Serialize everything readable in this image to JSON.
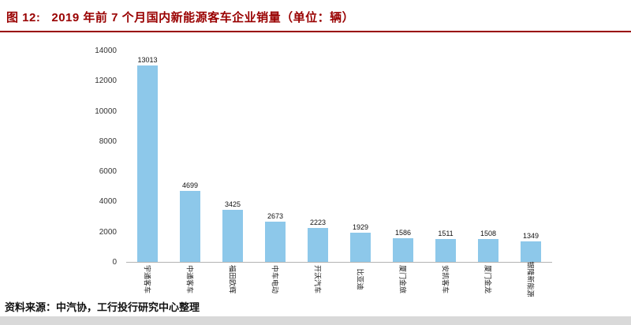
{
  "header": {
    "figure_label": "图 12:",
    "title": "2019 年前 7 个月国内新能源客车企业销量（单位：辆）"
  },
  "footer": {
    "source": "资料来源：中汽协，工行投行研究中心整理"
  },
  "colors": {
    "accent_red": "#990000",
    "bar_fill": "#8DC8EA",
    "axis_line": "#b3b3b3"
  },
  "chart_data": {
    "type": "bar",
    "title": "2019 年前 7 个月国内新能源客车企业销量（单位：辆）",
    "categories": [
      "宇通客车",
      "中通客车",
      "福田欧辉",
      "中车电动",
      "开沃汽车",
      "比亚迪",
      "厦门金旅",
      "安凯客车",
      "厦门金龙",
      "银隆新能源"
    ],
    "values": [
      13013,
      4699,
      3425,
      2673,
      2223,
      1929,
      1586,
      1511,
      1508,
      1349
    ],
    "xlabel": "",
    "ylabel": "",
    "ylim": [
      0,
      14000
    ],
    "yticks": [
      0,
      2000,
      4000,
      6000,
      8000,
      10000,
      12000,
      14000
    ],
    "grid": false,
    "legend": false,
    "data_labels": true
  }
}
